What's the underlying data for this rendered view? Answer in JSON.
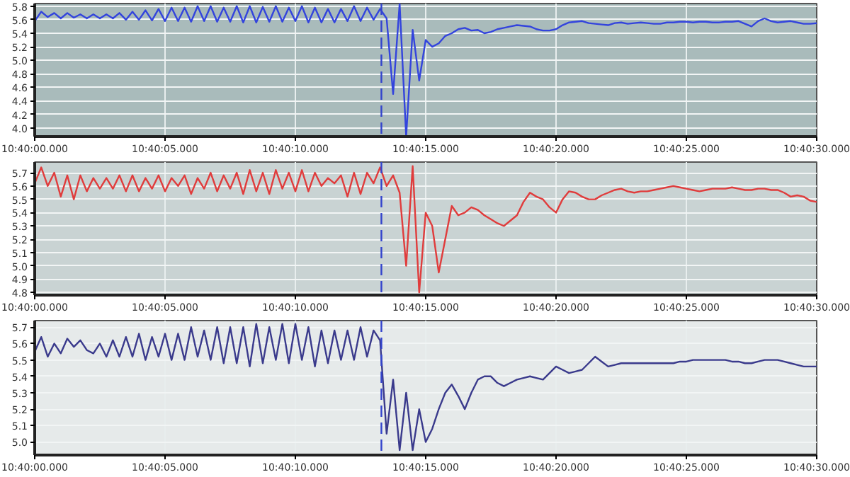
{
  "chart_data": [
    {
      "type": "line",
      "categories": [
        "10:40:00.000",
        null,
        null,
        null,
        null,
        null,
        null,
        null,
        null,
        null,
        null,
        null,
        null,
        null,
        null,
        null,
        null,
        null,
        null,
        null,
        "10:40:05.000",
        null,
        null,
        null,
        null,
        null,
        null,
        null,
        null,
        null,
        null,
        null,
        null,
        null,
        null,
        null,
        null,
        null,
        null,
        null,
        "10:40:10.000",
        null,
        null,
        null,
        null,
        null,
        null,
        null,
        null,
        null,
        null,
        null,
        null,
        null,
        null,
        null,
        null,
        null,
        null,
        null,
        "10:40:15.000",
        null,
        null,
        null,
        null,
        null,
        null,
        null,
        null,
        null,
        null,
        null,
        null,
        null,
        null,
        null,
        null,
        null,
        null,
        null,
        "10:40:20.000",
        null,
        null,
        null,
        null,
        null,
        null,
        null,
        null,
        null,
        null,
        null,
        null,
        null,
        null,
        null,
        null,
        null,
        null,
        null,
        "10:40:25.000",
        null,
        null,
        null,
        null,
        null,
        null,
        null,
        null,
        null,
        null,
        null,
        null,
        null,
        null,
        null,
        null,
        null,
        null,
        null,
        "10:40:30.000"
      ],
      "series": [
        {
          "color": "#3344dd",
          "values": [
            5.58,
            5.72,
            5.64,
            5.7,
            5.62,
            5.7,
            5.63,
            5.68,
            5.62,
            5.68,
            5.62,
            5.68,
            5.62,
            5.7,
            5.6,
            5.72,
            5.6,
            5.74,
            5.59,
            5.76,
            5.58,
            5.78,
            5.58,
            5.78,
            5.57,
            5.8,
            5.58,
            5.8,
            5.57,
            5.78,
            5.57,
            5.8,
            5.56,
            5.8,
            5.56,
            5.79,
            5.57,
            5.8,
            5.57,
            5.78,
            5.58,
            5.8,
            5.56,
            5.78,
            5.56,
            5.76,
            5.56,
            5.76,
            5.58,
            5.8,
            5.58,
            5.78,
            5.6,
            5.76,
            5.62,
            4.5,
            5.84,
            3.87,
            5.45,
            4.7,
            5.3,
            5.2,
            5.25,
            5.36,
            5.4,
            5.46,
            5.48,
            5.44,
            5.45,
            5.4,
            5.42,
            5.46,
            5.48,
            5.5,
            5.52,
            5.51,
            5.5,
            5.46,
            5.44,
            5.44,
            5.46,
            5.52,
            5.56,
            5.57,
            5.58,
            5.55,
            5.54,
            5.53,
            5.52,
            5.55,
            5.56,
            5.54,
            5.55,
            5.56,
            5.55,
            5.54,
            5.54,
            5.56,
            5.56,
            5.57,
            5.57,
            5.56,
            5.57,
            5.57,
            5.56,
            5.56,
            5.57,
            5.57,
            5.58,
            5.54,
            5.5,
            5.58,
            5.62,
            5.58,
            5.56,
            5.57,
            5.58,
            5.56,
            5.54,
            5.54,
            5.55
          ]
        }
      ],
      "ylim": [
        3.87,
        5.84
      ],
      "yticks": [
        {
          "value": 4.0,
          "label": "4.0"
        },
        {
          "value": 4.2,
          "label": "4.2"
        },
        {
          "value": 4.4,
          "label": "4.4"
        },
        {
          "value": 4.6,
          "label": "4.6"
        },
        {
          "value": 4.8,
          "label": "4.8"
        },
        {
          "value": 5.0,
          "label": "5.0"
        },
        {
          "value": 5.2,
          "label": "5.2"
        },
        {
          "value": 5.4,
          "label": "5.4"
        },
        {
          "value": 5.6,
          "label": "5.6"
        },
        {
          "value": 5.8,
          "label": "5.8"
        }
      ],
      "grid": true
    },
    {
      "type": "line",
      "categories": [
        "10:40:00.000",
        null,
        null,
        null,
        null,
        null,
        null,
        null,
        null,
        null,
        null,
        null,
        null,
        null,
        null,
        null,
        null,
        null,
        null,
        null,
        "10:40:05.000",
        null,
        null,
        null,
        null,
        null,
        null,
        null,
        null,
        null,
        null,
        null,
        null,
        null,
        null,
        null,
        null,
        null,
        null,
        null,
        "10:40:10.000",
        null,
        null,
        null,
        null,
        null,
        null,
        null,
        null,
        null,
        null,
        null,
        null,
        null,
        null,
        null,
        null,
        null,
        null,
        null,
        "10:40:15.000",
        null,
        null,
        null,
        null,
        null,
        null,
        null,
        null,
        null,
        null,
        null,
        null,
        null,
        null,
        null,
        null,
        null,
        null,
        null,
        "10:40:20.000",
        null,
        null,
        null,
        null,
        null,
        null,
        null,
        null,
        null,
        null,
        null,
        null,
        null,
        null,
        null,
        null,
        null,
        null,
        null,
        "10:40:25.000",
        null,
        null,
        null,
        null,
        null,
        null,
        null,
        null,
        null,
        null,
        null,
        null,
        null,
        null,
        null,
        null,
        null,
        null,
        null,
        "10:40:30.000"
      ],
      "series": [
        {
          "color": "#e03c3c",
          "values": [
            5.62,
            5.74,
            5.6,
            5.7,
            5.52,
            5.68,
            5.5,
            5.68,
            5.56,
            5.66,
            5.58,
            5.66,
            5.58,
            5.68,
            5.56,
            5.68,
            5.56,
            5.66,
            5.58,
            5.68,
            5.56,
            5.66,
            5.6,
            5.68,
            5.54,
            5.66,
            5.58,
            5.7,
            5.56,
            5.68,
            5.58,
            5.7,
            5.54,
            5.72,
            5.56,
            5.7,
            5.54,
            5.72,
            5.58,
            5.7,
            5.56,
            5.72,
            5.56,
            5.7,
            5.6,
            5.66,
            5.62,
            5.68,
            5.52,
            5.7,
            5.54,
            5.7,
            5.62,
            5.74,
            5.6,
            5.68,
            5.55,
            5.0,
            5.75,
            4.8,
            5.4,
            5.3,
            4.95,
            5.2,
            5.45,
            5.38,
            5.4,
            5.44,
            5.42,
            5.38,
            5.35,
            5.32,
            5.3,
            5.34,
            5.38,
            5.48,
            5.55,
            5.52,
            5.5,
            5.44,
            5.4,
            5.5,
            5.56,
            5.55,
            5.52,
            5.5,
            5.5,
            5.53,
            5.55,
            5.57,
            5.58,
            5.56,
            5.55,
            5.56,
            5.56,
            5.57,
            5.58,
            5.59,
            5.6,
            5.59,
            5.58,
            5.57,
            5.56,
            5.57,
            5.58,
            5.58,
            5.58,
            5.59,
            5.58,
            5.57,
            5.57,
            5.58,
            5.58,
            5.57,
            5.57,
            5.55,
            5.52,
            5.53,
            5.52,
            5.49,
            5.48
          ]
        }
      ],
      "ylim": [
        4.78,
        5.78
      ],
      "yticks": [
        {
          "value": 4.8,
          "label": "4.8"
        },
        {
          "value": 4.9,
          "label": "4.9"
        },
        {
          "value": 5.0,
          "label": "5.0"
        },
        {
          "value": 5.1,
          "label": "5.1"
        },
        {
          "value": 5.2,
          "label": "5.2"
        },
        {
          "value": 5.3,
          "label": "5.3"
        },
        {
          "value": 5.4,
          "label": "5.4"
        },
        {
          "value": 5.5,
          "label": "5.5"
        },
        {
          "value": 5.6,
          "label": "5.6"
        },
        {
          "value": 5.7,
          "label": "5.7"
        }
      ],
      "grid": true
    },
    {
      "type": "line",
      "categories": [
        "10:40:00.000",
        null,
        null,
        null,
        null,
        null,
        null,
        null,
        null,
        null,
        null,
        null,
        null,
        null,
        null,
        null,
        null,
        null,
        null,
        null,
        "10:40:05.000",
        null,
        null,
        null,
        null,
        null,
        null,
        null,
        null,
        null,
        null,
        null,
        null,
        null,
        null,
        null,
        null,
        null,
        null,
        null,
        "10:40:10.000",
        null,
        null,
        null,
        null,
        null,
        null,
        null,
        null,
        null,
        null,
        null,
        null,
        null,
        null,
        null,
        null,
        null,
        null,
        null,
        "10:40:15.000",
        null,
        null,
        null,
        null,
        null,
        null,
        null,
        null,
        null,
        null,
        null,
        null,
        null,
        null,
        null,
        null,
        null,
        null,
        null,
        "10:40:20.000",
        null,
        null,
        null,
        null,
        null,
        null,
        null,
        null,
        null,
        null,
        null,
        null,
        null,
        null,
        null,
        null,
        null,
        null,
        null,
        "10:40:25.000",
        null,
        null,
        null,
        null,
        null,
        null,
        null,
        null,
        null,
        null,
        null,
        null,
        null,
        null,
        null,
        null,
        null,
        null,
        null,
        "10:40:30.000"
      ],
      "series": [
        {
          "color": "#3a3a8c",
          "values": [
            5.55,
            5.64,
            5.52,
            5.6,
            5.54,
            5.63,
            5.58,
            5.62,
            5.56,
            5.54,
            5.6,
            5.52,
            5.62,
            5.52,
            5.64,
            5.52,
            5.66,
            5.5,
            5.64,
            5.52,
            5.66,
            5.5,
            5.66,
            5.5,
            5.7,
            5.52,
            5.68,
            5.5,
            5.7,
            5.48,
            5.7,
            5.48,
            5.7,
            5.46,
            5.72,
            5.48,
            5.7,
            5.5,
            5.72,
            5.48,
            5.72,
            5.5,
            5.7,
            5.46,
            5.68,
            5.48,
            5.68,
            5.5,
            5.68,
            5.5,
            5.7,
            5.52,
            5.68,
            5.62,
            5.05,
            5.38,
            4.95,
            5.3,
            4.95,
            5.2,
            5.0,
            5.08,
            5.2,
            5.3,
            5.35,
            5.28,
            5.2,
            5.3,
            5.38,
            5.4,
            5.4,
            5.36,
            5.34,
            5.36,
            5.38,
            5.39,
            5.4,
            5.39,
            5.38,
            5.42,
            5.46,
            5.44,
            5.42,
            5.43,
            5.44,
            5.48,
            5.52,
            5.49,
            5.46,
            5.47,
            5.48,
            5.48,
            5.48,
            5.48,
            5.48,
            5.48,
            5.48,
            5.48,
            5.48,
            5.49,
            5.49,
            5.5,
            5.5,
            5.5,
            5.5,
            5.5,
            5.5,
            5.49,
            5.49,
            5.48,
            5.48,
            5.49,
            5.5,
            5.5,
            5.5,
            5.49,
            5.48,
            5.47,
            5.46,
            5.46,
            5.46
          ]
        }
      ],
      "ylim": [
        4.92,
        5.74
      ],
      "yticks": [
        {
          "value": 5.0,
          "label": "5.0"
        },
        {
          "value": 5.1,
          "label": "5.1"
        },
        {
          "value": 5.2,
          "label": "5.2"
        },
        {
          "value": 5.3,
          "label": "5.3"
        },
        {
          "value": 5.4,
          "label": "5.4"
        },
        {
          "value": 5.5,
          "label": "5.5"
        },
        {
          "value": 5.6,
          "label": "5.6"
        },
        {
          "value": 5.7,
          "label": "5.7"
        }
      ],
      "grid": true
    }
  ]
}
